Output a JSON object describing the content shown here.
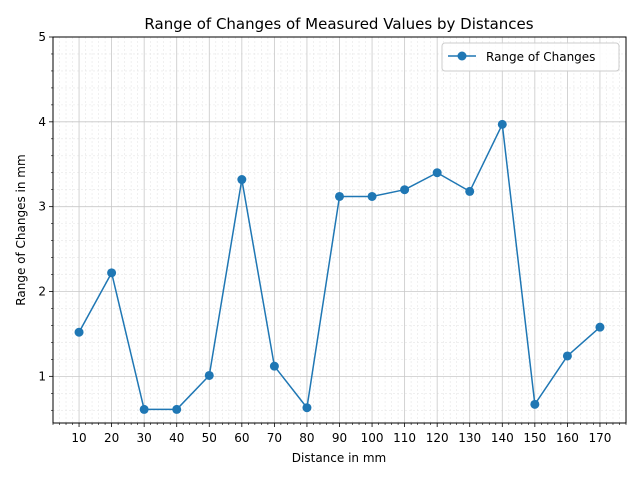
{
  "chart_data": {
    "type": "line",
    "title": "Range of Changes of Measured Values by Distances",
    "xlabel": "Distance in mm",
    "ylabel": "Range of Changes in mm",
    "xlim": [
      2,
      178
    ],
    "ylim": [
      0.45,
      5
    ],
    "x_ticks": [
      10,
      20,
      30,
      40,
      50,
      60,
      70,
      80,
      90,
      100,
      110,
      120,
      130,
      140,
      150,
      160,
      170
    ],
    "y_ticks": [
      1,
      2,
      3,
      4,
      5
    ],
    "grid": "major and minor",
    "legend_position": "top-right",
    "series": [
      {
        "name": "Range of Changes",
        "color": "#1f77b4",
        "marker": "circle",
        "x": [
          10,
          20,
          30,
          40,
          50,
          60,
          70,
          80,
          90,
          100,
          110,
          120,
          130,
          140,
          150,
          160,
          170
        ],
        "y": [
          1.52,
          2.22,
          0.61,
          0.61,
          1.01,
          3.32,
          1.12,
          0.63,
          3.12,
          3.12,
          3.2,
          3.4,
          3.18,
          3.97,
          0.67,
          1.24,
          1.58
        ]
      }
    ]
  }
}
